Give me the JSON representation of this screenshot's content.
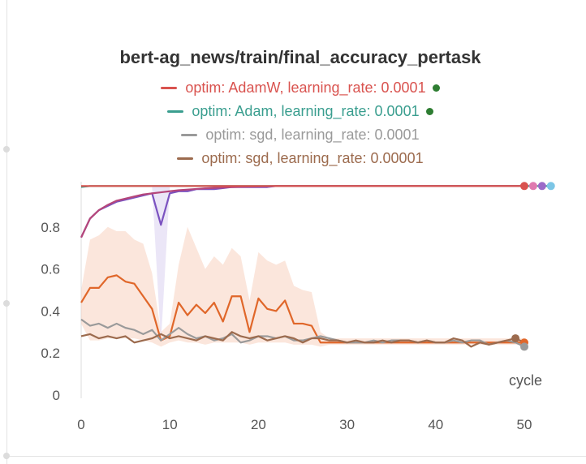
{
  "chart_data": {
    "type": "line",
    "title": "bert-ag_news/train/final_accuracy_pertask",
    "xlabel": "cycle",
    "ylabel": "",
    "xlim": [
      0,
      53
    ],
    "ylim": [
      0,
      1
    ],
    "xticks": [
      0,
      10,
      20,
      30,
      40,
      50
    ],
    "yticks": [
      0,
      0.2,
      0.4,
      0.6,
      0.8
    ],
    "legend_position": "top",
    "legend": [
      {
        "label": "optim: AdamW, learning_rate: 0.0001",
        "color": "#d9534f",
        "dot": true
      },
      {
        "label": "optim: Adam, learning_rate: 0.0001",
        "color": "#3a9e8f",
        "dot": true
      },
      {
        "label": "optim: sgd, learning_rate: 0.0001",
        "color": "#9a9a9a",
        "dot": false
      },
      {
        "label": "optim: sgd, learning_rate: 0.00001",
        "color": "#9c6b4e",
        "dot": false
      }
    ],
    "series": [
      {
        "color": "#e0672a",
        "band": true,
        "band_color": "#f7d2c0",
        "values": [
          0.44,
          0.51,
          0.51,
          0.56,
          0.57,
          0.54,
          0.53,
          0.47,
          0.41,
          0.26,
          0.28,
          0.44,
          0.38,
          0.43,
          0.39,
          0.44,
          0.35,
          0.47,
          0.47,
          0.3,
          0.46,
          0.41,
          0.4,
          0.45,
          0.34,
          0.34,
          0.33,
          0.25,
          0.25,
          0.25,
          0.25,
          0.25,
          0.25,
          0.25,
          0.25,
          0.25,
          0.25,
          0.25,
          0.25,
          0.25,
          0.25,
          0.25,
          0.25,
          0.25,
          0.25,
          0.25,
          0.25,
          0.25,
          0.25,
          0.25,
          0.25
        ],
        "band_high": [
          0.5,
          0.74,
          0.76,
          0.8,
          0.78,
          0.78,
          0.74,
          0.72,
          0.58,
          0.3,
          0.34,
          0.62,
          0.8,
          0.7,
          0.6,
          0.66,
          0.62,
          0.7,
          0.66,
          0.45,
          0.68,
          0.64,
          0.62,
          0.64,
          0.52,
          0.5,
          0.49,
          0.3,
          0.27,
          0.27,
          0.27,
          0.27,
          0.27,
          0.27,
          0.27,
          0.27,
          0.27,
          0.27,
          0.27,
          0.27,
          0.27,
          0.27,
          0.27,
          0.27,
          0.27,
          0.27,
          0.27,
          0.27,
          0.27,
          0.27,
          0.27
        ],
        "band_low": [
          0.34,
          0.26,
          0.26,
          0.27,
          0.27,
          0.27,
          0.27,
          0.26,
          0.25,
          0.23,
          0.25,
          0.26,
          0.25,
          0.25,
          0.24,
          0.25,
          0.25,
          0.25,
          0.25,
          0.24,
          0.25,
          0.25,
          0.25,
          0.25,
          0.24,
          0.24,
          0.24,
          0.23,
          0.24,
          0.24,
          0.24,
          0.24,
          0.24,
          0.24,
          0.24,
          0.24,
          0.24,
          0.24,
          0.24,
          0.24,
          0.24,
          0.24,
          0.24,
          0.24,
          0.24,
          0.24,
          0.24,
          0.24,
          0.24,
          0.24,
          0.24
        ]
      },
      {
        "color": "#9a9a9a",
        "values": [
          0.36,
          0.33,
          0.34,
          0.32,
          0.34,
          0.32,
          0.31,
          0.29,
          0.31,
          0.26,
          0.29,
          0.32,
          0.29,
          0.27,
          0.28,
          0.26,
          0.27,
          0.29,
          0.25,
          0.26,
          0.28,
          0.28,
          0.27,
          0.28,
          0.26,
          0.26,
          0.27,
          0.28,
          0.27,
          0.26,
          0.25,
          0.25,
          0.25,
          0.26,
          0.25,
          0.26,
          0.26,
          0.26,
          0.25,
          0.26,
          0.25,
          0.25,
          0.26,
          0.25,
          0.26,
          0.26,
          0.24,
          0.25,
          0.26,
          0.25,
          0.23
        ]
      },
      {
        "color": "#9c6b4e",
        "values": [
          0.28,
          0.29,
          0.27,
          0.28,
          0.27,
          0.28,
          0.25,
          0.26,
          0.27,
          0.29,
          0.27,
          0.28,
          0.27,
          0.26,
          0.28,
          0.27,
          0.26,
          0.3,
          0.28,
          0.27,
          0.28,
          0.26,
          0.27,
          0.28,
          0.27,
          0.25,
          0.27,
          0.27,
          0.26,
          0.26,
          0.25,
          0.26,
          0.25,
          0.25,
          0.26,
          0.25,
          0.26,
          0.26,
          0.25,
          0.26,
          0.25,
          0.25,
          0.27,
          0.26,
          0.23,
          0.25,
          0.24,
          0.25,
          0.26,
          0.27,
          0.25
        ]
      },
      {
        "color": "#7b52c0",
        "values": [
          0.75,
          0.84,
          0.88,
          0.9,
          0.92,
          0.93,
          0.94,
          0.95,
          0.96,
          0.81,
          0.96,
          0.97,
          0.97,
          0.98,
          0.98,
          0.98,
          0.985,
          0.99,
          0.99,
          0.99,
          0.99,
          0.99,
          0.995,
          0.995,
          0.995,
          0.995,
          0.995,
          0.995,
          0.995,
          0.995,
          0.995,
          0.995,
          0.995,
          0.995,
          0.995,
          0.995,
          0.995,
          0.995,
          0.995,
          0.995,
          0.995,
          0.995,
          0.995,
          0.995,
          0.995,
          0.995,
          0.995,
          0.995,
          0.995,
          0.995,
          0.995
        ]
      },
      {
        "color": "#3a9e8f",
        "values": [
          0.99,
          0.995,
          0.995,
          0.995,
          0.995,
          0.995,
          0.995,
          0.995,
          0.995,
          0.995,
          0.995,
          0.995,
          0.995,
          0.995,
          0.995,
          0.995,
          0.995,
          0.995,
          0.995,
          0.995,
          0.995,
          0.995,
          0.995,
          0.995,
          0.995,
          0.995,
          0.995,
          0.995,
          0.995,
          0.995,
          0.995,
          0.995,
          0.995,
          0.995,
          0.995,
          0.995,
          0.995,
          0.995,
          0.995,
          0.995,
          0.995,
          0.995,
          0.995,
          0.995,
          0.995,
          0.995,
          0.995,
          0.995,
          0.995,
          0.995,
          0.995,
          0.995,
          0.995,
          0.995
        ]
      },
      {
        "color": "#b5467a",
        "values": [
          0.75,
          0.84,
          0.88,
          0.905,
          0.925,
          0.935,
          0.945,
          0.955,
          0.96,
          0.965,
          0.97,
          0.975,
          0.978,
          0.981,
          0.984,
          0.986,
          0.988,
          0.99,
          0.991,
          0.992,
          0.993,
          0.994,
          0.995,
          0.995,
          0.995,
          0.995,
          0.995,
          0.995,
          0.995,
          0.995,
          0.995,
          0.995,
          0.995,
          0.995,
          0.995,
          0.995,
          0.995,
          0.995,
          0.995,
          0.995,
          0.995,
          0.995,
          0.995,
          0.995,
          0.995,
          0.995,
          0.995,
          0.995,
          0.995,
          0.995,
          0.995
        ]
      },
      {
        "color": "#d9534f",
        "values": [
          0.995,
          0.995,
          0.995,
          0.995,
          0.995,
          0.995,
          0.995,
          0.995,
          0.995,
          0.995,
          0.995,
          0.995,
          0.995,
          0.995,
          0.995,
          0.995,
          0.995,
          0.995,
          0.995,
          0.995,
          0.995,
          0.995,
          0.995,
          0.995,
          0.995,
          0.995,
          0.995,
          0.995,
          0.995,
          0.995,
          0.995,
          0.995,
          0.995,
          0.995,
          0.995,
          0.995,
          0.995,
          0.995,
          0.995,
          0.995,
          0.995,
          0.995,
          0.995,
          0.995,
          0.995,
          0.995,
          0.995,
          0.995,
          0.995,
          0.995,
          0.995
        ]
      }
    ],
    "endpoints": [
      {
        "x": 49,
        "y": 0.27,
        "color": "#9c6b4e"
      },
      {
        "x": 50,
        "y": 0.25,
        "color": "#e0672a"
      },
      {
        "x": 50,
        "y": 0.23,
        "color": "#9a9a9a"
      },
      {
        "x": 50,
        "y": 0.995,
        "color": "#d9534f"
      },
      {
        "x": 51,
        "y": 0.995,
        "color": "#e07ab0"
      },
      {
        "x": 52,
        "y": 0.995,
        "color": "#9b6bc9"
      },
      {
        "x": 53,
        "y": 0.995,
        "color": "#7cc6e6"
      }
    ]
  }
}
